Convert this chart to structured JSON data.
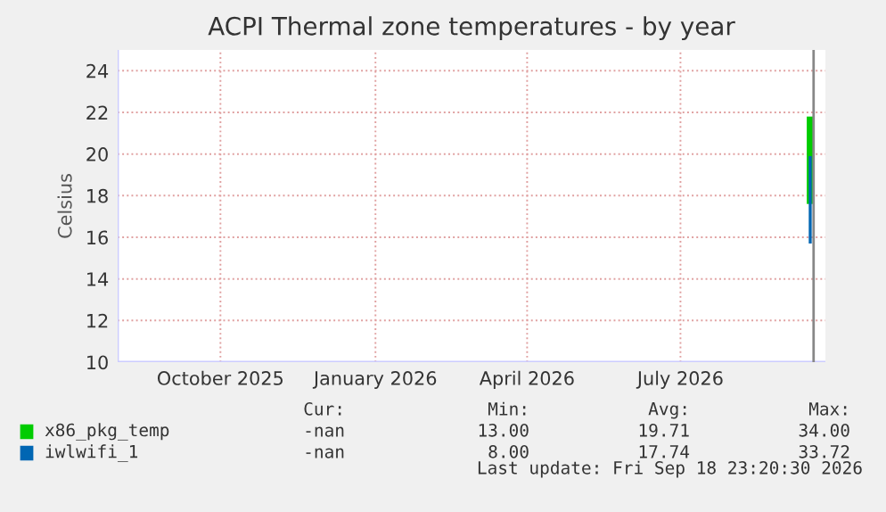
{
  "chart_data": {
    "type": "line",
    "title": "ACPI Thermal zone temperatures - by year",
    "ylabel": "Celsius",
    "series": [
      {
        "name": "x86_pkg_temp",
        "color": "#00cc00",
        "x": [
          "2026-09-16",
          "2026-09-16"
        ],
        "values": [
          21.8,
          17.6
        ]
      },
      {
        "name": "iwlwifi_1",
        "color": "#0066b3",
        "x": [
          "2026-09-16",
          "2026-09-16"
        ],
        "values": [
          19.9,
          15.7
        ]
      }
    ],
    "xlim": [
      "2025-08-01",
      "2026-09-25"
    ],
    "xticks": [
      {
        "value": "2025-10-01",
        "label": "October 2025"
      },
      {
        "value": "2026-01-01",
        "label": "January 2026"
      },
      {
        "value": "2026-04-01",
        "label": "April 2026"
      },
      {
        "value": "2026-07-01",
        "label": "July 2026"
      }
    ],
    "ylim": [
      10,
      25
    ],
    "yticks": [
      10,
      12,
      14,
      16,
      18,
      20,
      22,
      24
    ],
    "ref_lines": [
      {
        "axis": "x",
        "value": "2026-09-18",
        "label": null,
        "color": "#888888"
      }
    ],
    "grid": true,
    "legend": "bottom",
    "marker": "none",
    "line_style": "solid",
    "annotations": [
      "Cur:",
      "Min:",
      "Avg:",
      "Max:",
      "-nan",
      "13.00",
      "19.71",
      "34.00",
      "-nan",
      "8.00",
      "17.74",
      "33.72",
      "Last update: Fri Sep 18 23:20:30 2026"
    ]
  }
}
